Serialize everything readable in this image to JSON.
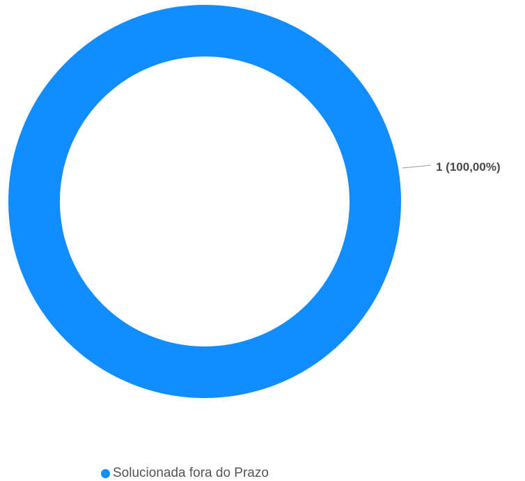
{
  "chart_data": {
    "type": "pie",
    "variant": "donut",
    "categories": [
      "Solucionada fora do Prazo"
    ],
    "values": [
      1
    ],
    "percentages": [
      100.0
    ],
    "data_labels": [
      "1 (100,00%)"
    ],
    "colors": [
      "#118DFF"
    ],
    "legend_placement": "bottom-left",
    "title": "",
    "grid": false
  },
  "legend": {
    "items": [
      {
        "label": "Solucionada fora do Prazo",
        "color": "#118DFF"
      }
    ]
  }
}
